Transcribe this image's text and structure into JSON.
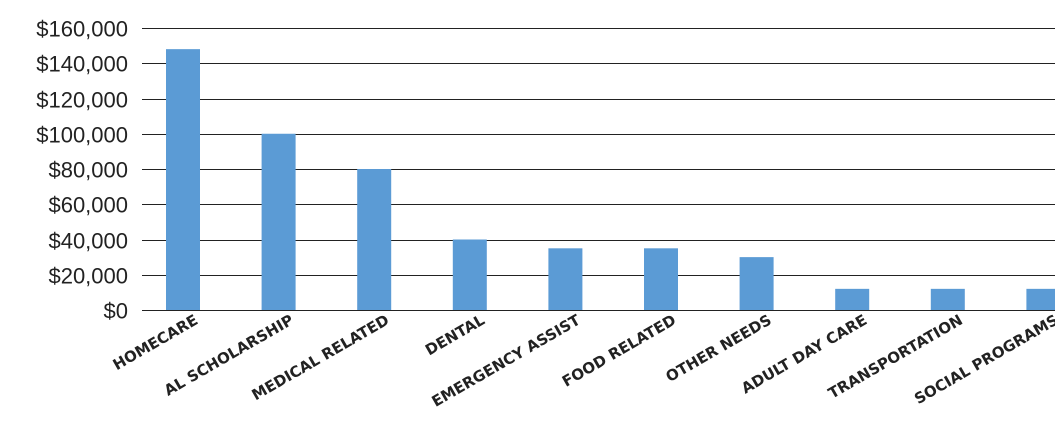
{
  "chart_data": {
    "type": "bar",
    "categories": [
      "HOMECARE",
      "AL SCHOLARSHIP",
      "MEDICAL RELATED",
      "DENTAL",
      "EMERGENCY ASSIST",
      "FOOD RELATED",
      "OTHER NEEDS",
      "ADULT DAY CARE",
      "TRANSPORTATION",
      "SOCIAL PROGRAMS"
    ],
    "values": [
      148000,
      100000,
      80000,
      40000,
      35000,
      35000,
      30000,
      12000,
      12000,
      12000
    ],
    "ylim": [
      0,
      160000
    ],
    "yticks": [
      0,
      20000,
      40000,
      60000,
      80000,
      100000,
      120000,
      140000,
      160000
    ],
    "ytick_labels": [
      "$0",
      "$20,000",
      "$40,000",
      "$60,000",
      "$80,000",
      "$100,000",
      "$120,000",
      "$140,000",
      "$160,000"
    ],
    "grid": true,
    "bar_color": "#5b9bd5",
    "grid_color": "#222222"
  }
}
